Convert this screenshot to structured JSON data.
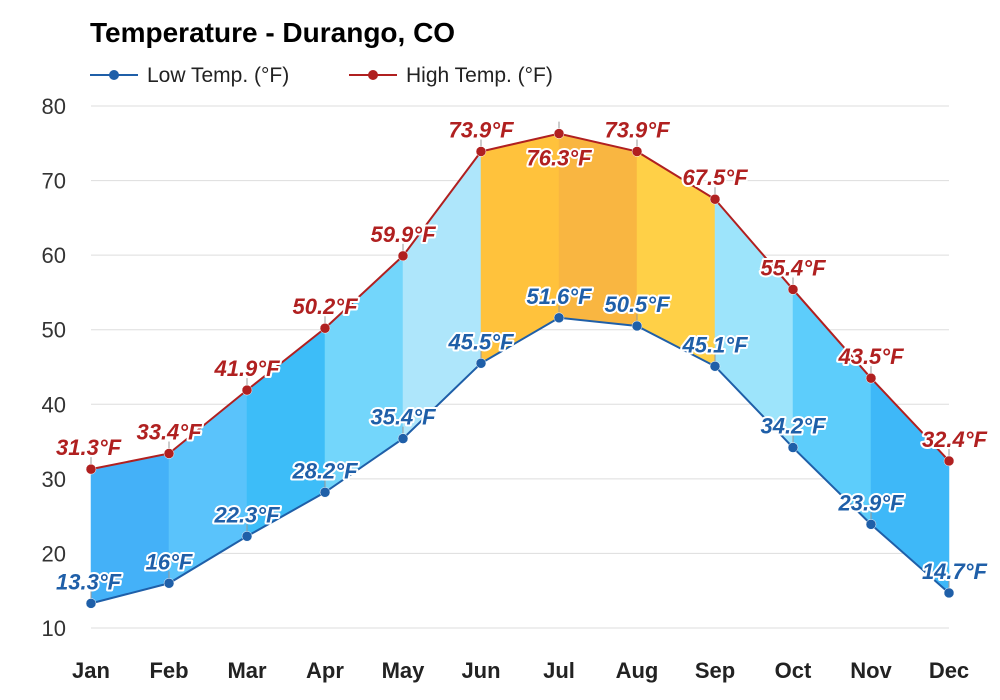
{
  "chart_data": {
    "type": "area",
    "title": "Temperature - Durango, CO",
    "categories": [
      "Jan",
      "Feb",
      "Mar",
      "Apr",
      "May",
      "Jun",
      "Jul",
      "Aug",
      "Sep",
      "Oct",
      "Nov",
      "Dec"
    ],
    "ylim": [
      10,
      80
    ],
    "yticks": [
      10,
      20,
      30,
      40,
      50,
      60,
      70,
      80
    ],
    "grid": true,
    "legend_position": "top-left",
    "series": [
      {
        "name": "Low Temp. (°F)",
        "color": "#1f5fa8",
        "values": [
          13.3,
          16,
          22.3,
          28.2,
          35.4,
          45.5,
          51.6,
          50.5,
          45.1,
          34.2,
          23.9,
          14.7
        ],
        "labels": [
          "13.3°F",
          "16°F",
          "22.3°F",
          "28.2°F",
          "35.4°F",
          "45.5°F",
          "51.6°F",
          "50.5°F",
          "45.1°F",
          "34.2°F",
          "23.9°F",
          "14.7°F"
        ]
      },
      {
        "name": "High Temp. (°F)",
        "color": "#b02020",
        "values": [
          31.3,
          33.4,
          41.9,
          50.2,
          59.9,
          73.9,
          76.3,
          73.9,
          67.5,
          55.4,
          43.5,
          32.4
        ],
        "labels": [
          "31.3°F",
          "33.4°F",
          "41.9°F",
          "50.2°F",
          "59.9°F",
          "73.9°F",
          "76.3°F",
          "73.9°F",
          "67.5°F",
          "55.4°F",
          "43.5°F",
          "32.4°F"
        ]
      }
    ],
    "band_colors": [
      "#44b1f8",
      "#5ac3fb",
      "#3dbdf8",
      "#73d6fb",
      "#aee6fb",
      "#ffc23c",
      "#f9b641",
      "#ffd047",
      "#9de4fb",
      "#5dcdfb",
      "#3eb8f8",
      "#4aaefb"
    ]
  }
}
